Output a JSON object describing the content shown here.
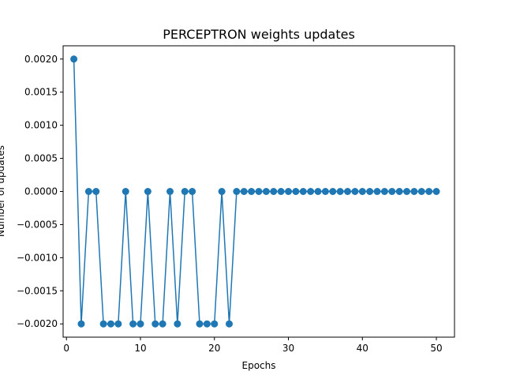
{
  "chart_data": {
    "type": "line",
    "title": "PERCEPTRON weights updates",
    "xlabel": "Epochs",
    "ylabel": "Number of updates",
    "xlim": [
      -0.45,
      52.45
    ],
    "ylim": [
      -0.0022,
      0.0022
    ],
    "x_ticks": [
      0,
      10,
      20,
      30,
      40,
      50
    ],
    "x_tick_labels": [
      "0",
      "10",
      "20",
      "30",
      "40",
      "50"
    ],
    "y_ticks": [
      -0.002,
      -0.0015,
      -0.001,
      -0.0005,
      0.0,
      0.0005,
      0.001,
      0.0015,
      0.002
    ],
    "y_tick_labels": [
      "−0.0020",
      "−0.0015",
      "−0.0010",
      "−0.0005",
      "0.0000",
      "0.0005",
      "0.0010",
      "0.0015",
      "0.0020"
    ],
    "grid": false,
    "legend": "none",
    "color": "#1f77b4",
    "marker": "circle",
    "x": [
      1,
      2,
      3,
      4,
      5,
      6,
      7,
      8,
      9,
      10,
      11,
      12,
      13,
      14,
      15,
      16,
      17,
      18,
      19,
      20,
      21,
      22,
      23,
      24,
      25,
      26,
      27,
      28,
      29,
      30,
      31,
      32,
      33,
      34,
      35,
      36,
      37,
      38,
      39,
      40,
      41,
      42,
      43,
      44,
      45,
      46,
      47,
      48,
      49,
      50
    ],
    "y": [
      0.002,
      -0.002,
      0,
      0,
      -0.002,
      -0.002,
      -0.002,
      0,
      -0.002,
      -0.002,
      0,
      -0.002,
      -0.002,
      0,
      -0.002,
      0,
      0,
      -0.002,
      -0.002,
      -0.002,
      0,
      -0.002,
      0,
      0,
      0,
      0,
      0,
      0,
      0,
      0,
      0,
      0,
      0,
      0,
      0,
      0,
      0,
      0,
      0,
      0,
      0,
      0,
      0,
      0,
      0,
      0,
      0,
      0,
      0,
      0
    ]
  }
}
